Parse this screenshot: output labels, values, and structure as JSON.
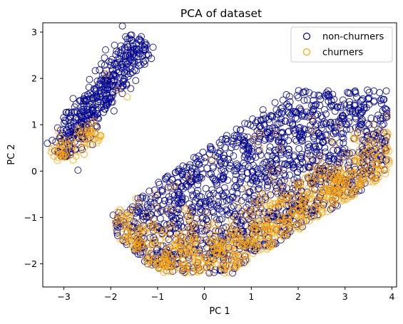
{
  "chart_data": {
    "type": "scatter",
    "title": "PCA of dataset",
    "xlabel": "PC 1",
    "ylabel": "PC 2",
    "xlim": [
      -3.45,
      4.1
    ],
    "ylim": [
      -2.5,
      3.2
    ],
    "xticks": [
      -3,
      -2,
      -1,
      0,
      1,
      2,
      3,
      4
    ],
    "yticks": [
      -2,
      -1,
      0,
      1,
      2,
      3
    ],
    "grid": false,
    "legend_position": "top-right",
    "marker": "hollow-circle",
    "series": [
      {
        "name": "non-churners",
        "color": "#00008b",
        "clusters": [
          {
            "kind": "band",
            "from": [
              -3.1,
              0.35
            ],
            "to": [
              -1.35,
              2.85
            ],
            "width": 0.38,
            "count": 420
          },
          {
            "kind": "region",
            "x_range": [
              -1.9,
              3.9
            ],
            "y_range": [
              -2.2,
              1.75
            ],
            "count": 1600
          }
        ],
        "points": [
          [
            -2.7,
            0.02
          ],
          [
            -1.95,
            -0.95
          ],
          [
            3.3,
            0.4
          ],
          [
            3.85,
            1.35
          ],
          [
            -1.35,
            2.9
          ],
          [
            0.6,
            -2.2
          ],
          [
            2.45,
            -0.05
          ],
          [
            3.5,
            1.55
          ]
        ]
      },
      {
        "name": "churners",
        "color": "#ffa500",
        "clusters": [
          {
            "kind": "band",
            "from": [
              -3.2,
              0.3
            ],
            "to": [
              -2.3,
              1.0
            ],
            "width": 0.3,
            "count": 70
          },
          {
            "kind": "region",
            "x_range": [
              -1.9,
              3.95
            ],
            "y_range": [
              -2.25,
              1.2
            ],
            "count": 750
          }
        ],
        "points": [
          [
            -1.85,
            1.75
          ],
          [
            -2.1,
            2.1
          ],
          [
            -1.65,
            1.6
          ],
          [
            3.9,
            1.2
          ],
          [
            3.6,
            1.0
          ],
          [
            0.6,
            -2.05
          ],
          [
            -1.9,
            -1.1
          ]
        ]
      }
    ]
  }
}
